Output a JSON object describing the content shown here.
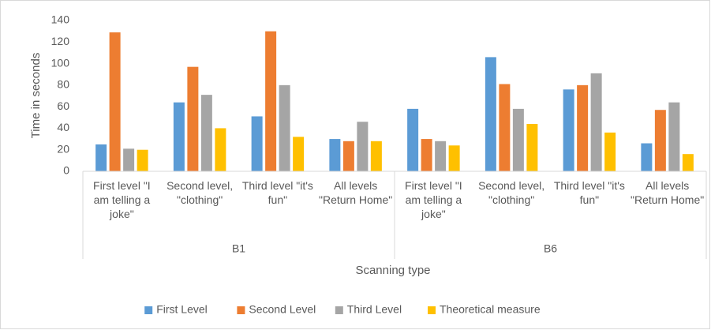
{
  "chart_data": {
    "type": "bar",
    "y_label": "Time in seconds",
    "x_label": "Scanning type",
    "categories": [
      "First level \"I am telling a joke\"",
      "Second level, \"clothing\"",
      "Third level \"it's fun\"",
      "All levels \"Return Home\"",
      "First level \"I am telling a joke\"",
      "Second level, \"clothing\"",
      "Third level \"it's fun\"",
      "All levels \"Return Home\""
    ],
    "category_groups": [
      "B1",
      "B6"
    ],
    "series": [
      {
        "name": "First Level",
        "color": "#5b9bd5",
        "values": [
          25,
          64,
          51,
          30,
          58,
          106,
          76,
          26
        ]
      },
      {
        "name": "Second Level",
        "color": "#ed7d31",
        "values": [
          129,
          97,
          130,
          28,
          30,
          81,
          80,
          57
        ]
      },
      {
        "name": "Third Level",
        "color": "#a5a5a5",
        "values": [
          21,
          71,
          80,
          46,
          28,
          58,
          91,
          64
        ]
      },
      {
        "name": "Theoretical measure",
        "color": "#ffc000",
        "values": [
          20,
          40,
          32,
          28,
          24,
          44,
          36,
          16
        ]
      }
    ],
    "ylim": [
      0,
      140
    ],
    "yticks": [
      0,
      20,
      40,
      60,
      80,
      100,
      120,
      140
    ],
    "grid": false,
    "legend": "bottom"
  }
}
